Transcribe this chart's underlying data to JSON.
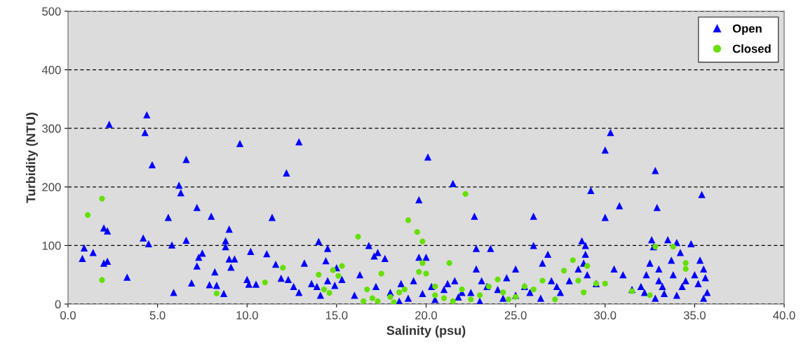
{
  "chart_data": {
    "type": "scatter",
    "xlabel": "Salinity (psu)",
    "ylabel": "Turbidity (NTU)",
    "xlim": [
      0,
      40
    ],
    "ylim": [
      0,
      500
    ],
    "xticks": [
      {
        "value": 0,
        "label": "0.0"
      },
      {
        "value": 5,
        "label": "5.0"
      },
      {
        "value": 10,
        "label": "10.0"
      },
      {
        "value": 15,
        "label": "15.0"
      },
      {
        "value": 20,
        "label": "20.0"
      },
      {
        "value": 25,
        "label": "25.0"
      },
      {
        "value": 30,
        "label": "30.0"
      },
      {
        "value": 35,
        "label": "35.0"
      },
      {
        "value": 40,
        "label": "40.0"
      }
    ],
    "yticks": [
      0,
      100,
      200,
      300,
      400,
      500
    ],
    "grid": "y",
    "legend": "top right",
    "series": [
      {
        "name": "Open",
        "color": "#0000ff",
        "marker": "triangle",
        "x": [
          0.9,
          0.8,
          1.4,
          2.3,
          2.0,
          2.2,
          2.0,
          2.2,
          3.3,
          4.3,
          4.4,
          4.2,
          4.5,
          4.7,
          5.6,
          5.8,
          5.9,
          6.2,
          6.3,
          6.6,
          6.6,
          6.9,
          7.2,
          7.3,
          7.2,
          7.5,
          7.9,
          8.0,
          8.2,
          8.3,
          8.7,
          8.8,
          8.8,
          9.0,
          9.1,
          9.0,
          9.3,
          9.6,
          10.0,
          10.2,
          10.1,
          10.5,
          11.1,
          11.4,
          11.6,
          11.9,
          12.2,
          12.3,
          12.6,
          12.9,
          12.9,
          13.2,
          13.6,
          13.9,
          14.0,
          14.1,
          14.4,
          14.5,
          14.5,
          14.9,
          15.0,
          15.3,
          16.3,
          16.8,
          17.1,
          17.3,
          17.7,
          17.2,
          18.0,
          18.6,
          19.3,
          19.6,
          19.6,
          20.0,
          20.1,
          20.3,
          21.0,
          21.2,
          21.5,
          21.6,
          22.0,
          22.7,
          22.8,
          22.8,
          23.1,
          23.4,
          23.6,
          24.0,
          24.5,
          25.0,
          25.5,
          26.0,
          26.0,
          26.5,
          26.8,
          27.0,
          27.5,
          28.0,
          28.5,
          28.7,
          28.9,
          28.9,
          28.8,
          29.0,
          29.2,
          29.5,
          30.0,
          30.0,
          30.3,
          30.5,
          30.8,
          31.0,
          31.5,
          32.0,
          32.2,
          32.5,
          32.6,
          32.7,
          32.8,
          32.9,
          33.0,
          33.0,
          33.2,
          33.3,
          33.5,
          33.7,
          33.8,
          34.0,
          34.2,
          34.3,
          34.5,
          34.8,
          35.0,
          35.2,
          35.3,
          35.4,
          35.5,
          35.6,
          35.7,
          35.5,
          32.3,
          32.8,
          34.0,
          16.0,
          18.5,
          19.0,
          20.5,
          21.8,
          23.0,
          24.3,
          25.0,
          25.8,
          26.4,
          27.3,
          22.5,
          19.8
        ],
        "values": [
          96,
          78,
          88,
          307,
          130,
          125,
          70,
          73,
          46,
          293,
          323,
          113,
          103,
          238,
          148,
          101,
          20,
          203,
          190,
          247,
          109,
          36,
          165,
          80,
          65,
          87,
          33,
          150,
          55,
          32,
          18,
          108,
          98,
          128,
          63,
          77,
          77,
          274,
          42,
          90,
          34,
          34,
          86,
          148,
          68,
          44,
          224,
          42,
          30,
          20,
          277,
          70,
          35,
          30,
          107,
          15,
          74,
          95,
          40,
          32,
          62,
          42,
          50,
          100,
          82,
          88,
          78,
          30,
          20,
          35,
          40,
          178,
          80,
          80,
          251,
          30,
          25,
          35,
          206,
          40,
          20,
          150,
          95,
          60,
          40,
          30,
          95,
          25,
          45,
          60,
          30,
          150,
          100,
          70,
          85,
          40,
          20,
          40,
          60,
          108,
          100,
          85,
          70,
          50,
          194,
          35,
          148,
          263,
          293,
          60,
          168,
          50,
          25,
          30,
          20,
          70,
          110,
          98,
          228,
          165,
          60,
          40,
          30,
          18,
          110,
          75,
          50,
          105,
          88,
          30,
          40,
          103,
          50,
          35,
          75,
          187,
          60,
          45,
          20,
          10,
          50,
          10,
          15,
          15,
          5,
          10,
          8,
          12,
          5,
          10,
          15,
          20,
          10,
          30,
          20,
          18
        ]
      },
      {
        "name": "Closed",
        "color": "#66e000",
        "marker": "circle",
        "x": [
          1.1,
          1.9,
          1.9,
          8.3,
          11.0,
          12.0,
          14.0,
          14.3,
          14.6,
          14.8,
          15.3,
          15.1,
          16.2,
          16.7,
          17.0,
          17.5,
          17.3,
          18.0,
          18.2,
          18.5,
          19.0,
          19.5,
          19.8,
          19.8,
          19.6,
          20.0,
          20.5,
          21.0,
          21.3,
          21.5,
          22.0,
          22.2,
          22.5,
          23.0,
          23.5,
          24.0,
          24.3,
          24.6,
          25.0,
          25.5,
          26.0,
          26.5,
          27.2,
          27.7,
          28.2,
          28.5,
          28.8,
          29.0,
          29.5,
          30.0,
          31.5,
          32.8,
          33.8,
          34.5,
          34.5,
          32.5,
          20.5,
          18.8,
          16.5
        ],
        "values": [
          152,
          180,
          41,
          18,
          37,
          62,
          50,
          25,
          19,
          58,
          65,
          48,
          115,
          25,
          10,
          52,
          5,
          12,
          3,
          20,
          143,
          123,
          107,
          70,
          55,
          52,
          15,
          10,
          70,
          5,
          25,
          188,
          8,
          15,
          30,
          42,
          20,
          8,
          12,
          30,
          25,
          40,
          8,
          57,
          75,
          40,
          20,
          65,
          35,
          35,
          22,
          98,
          98,
          70,
          60,
          15,
          30,
          25,
          5
        ]
      }
    ]
  }
}
